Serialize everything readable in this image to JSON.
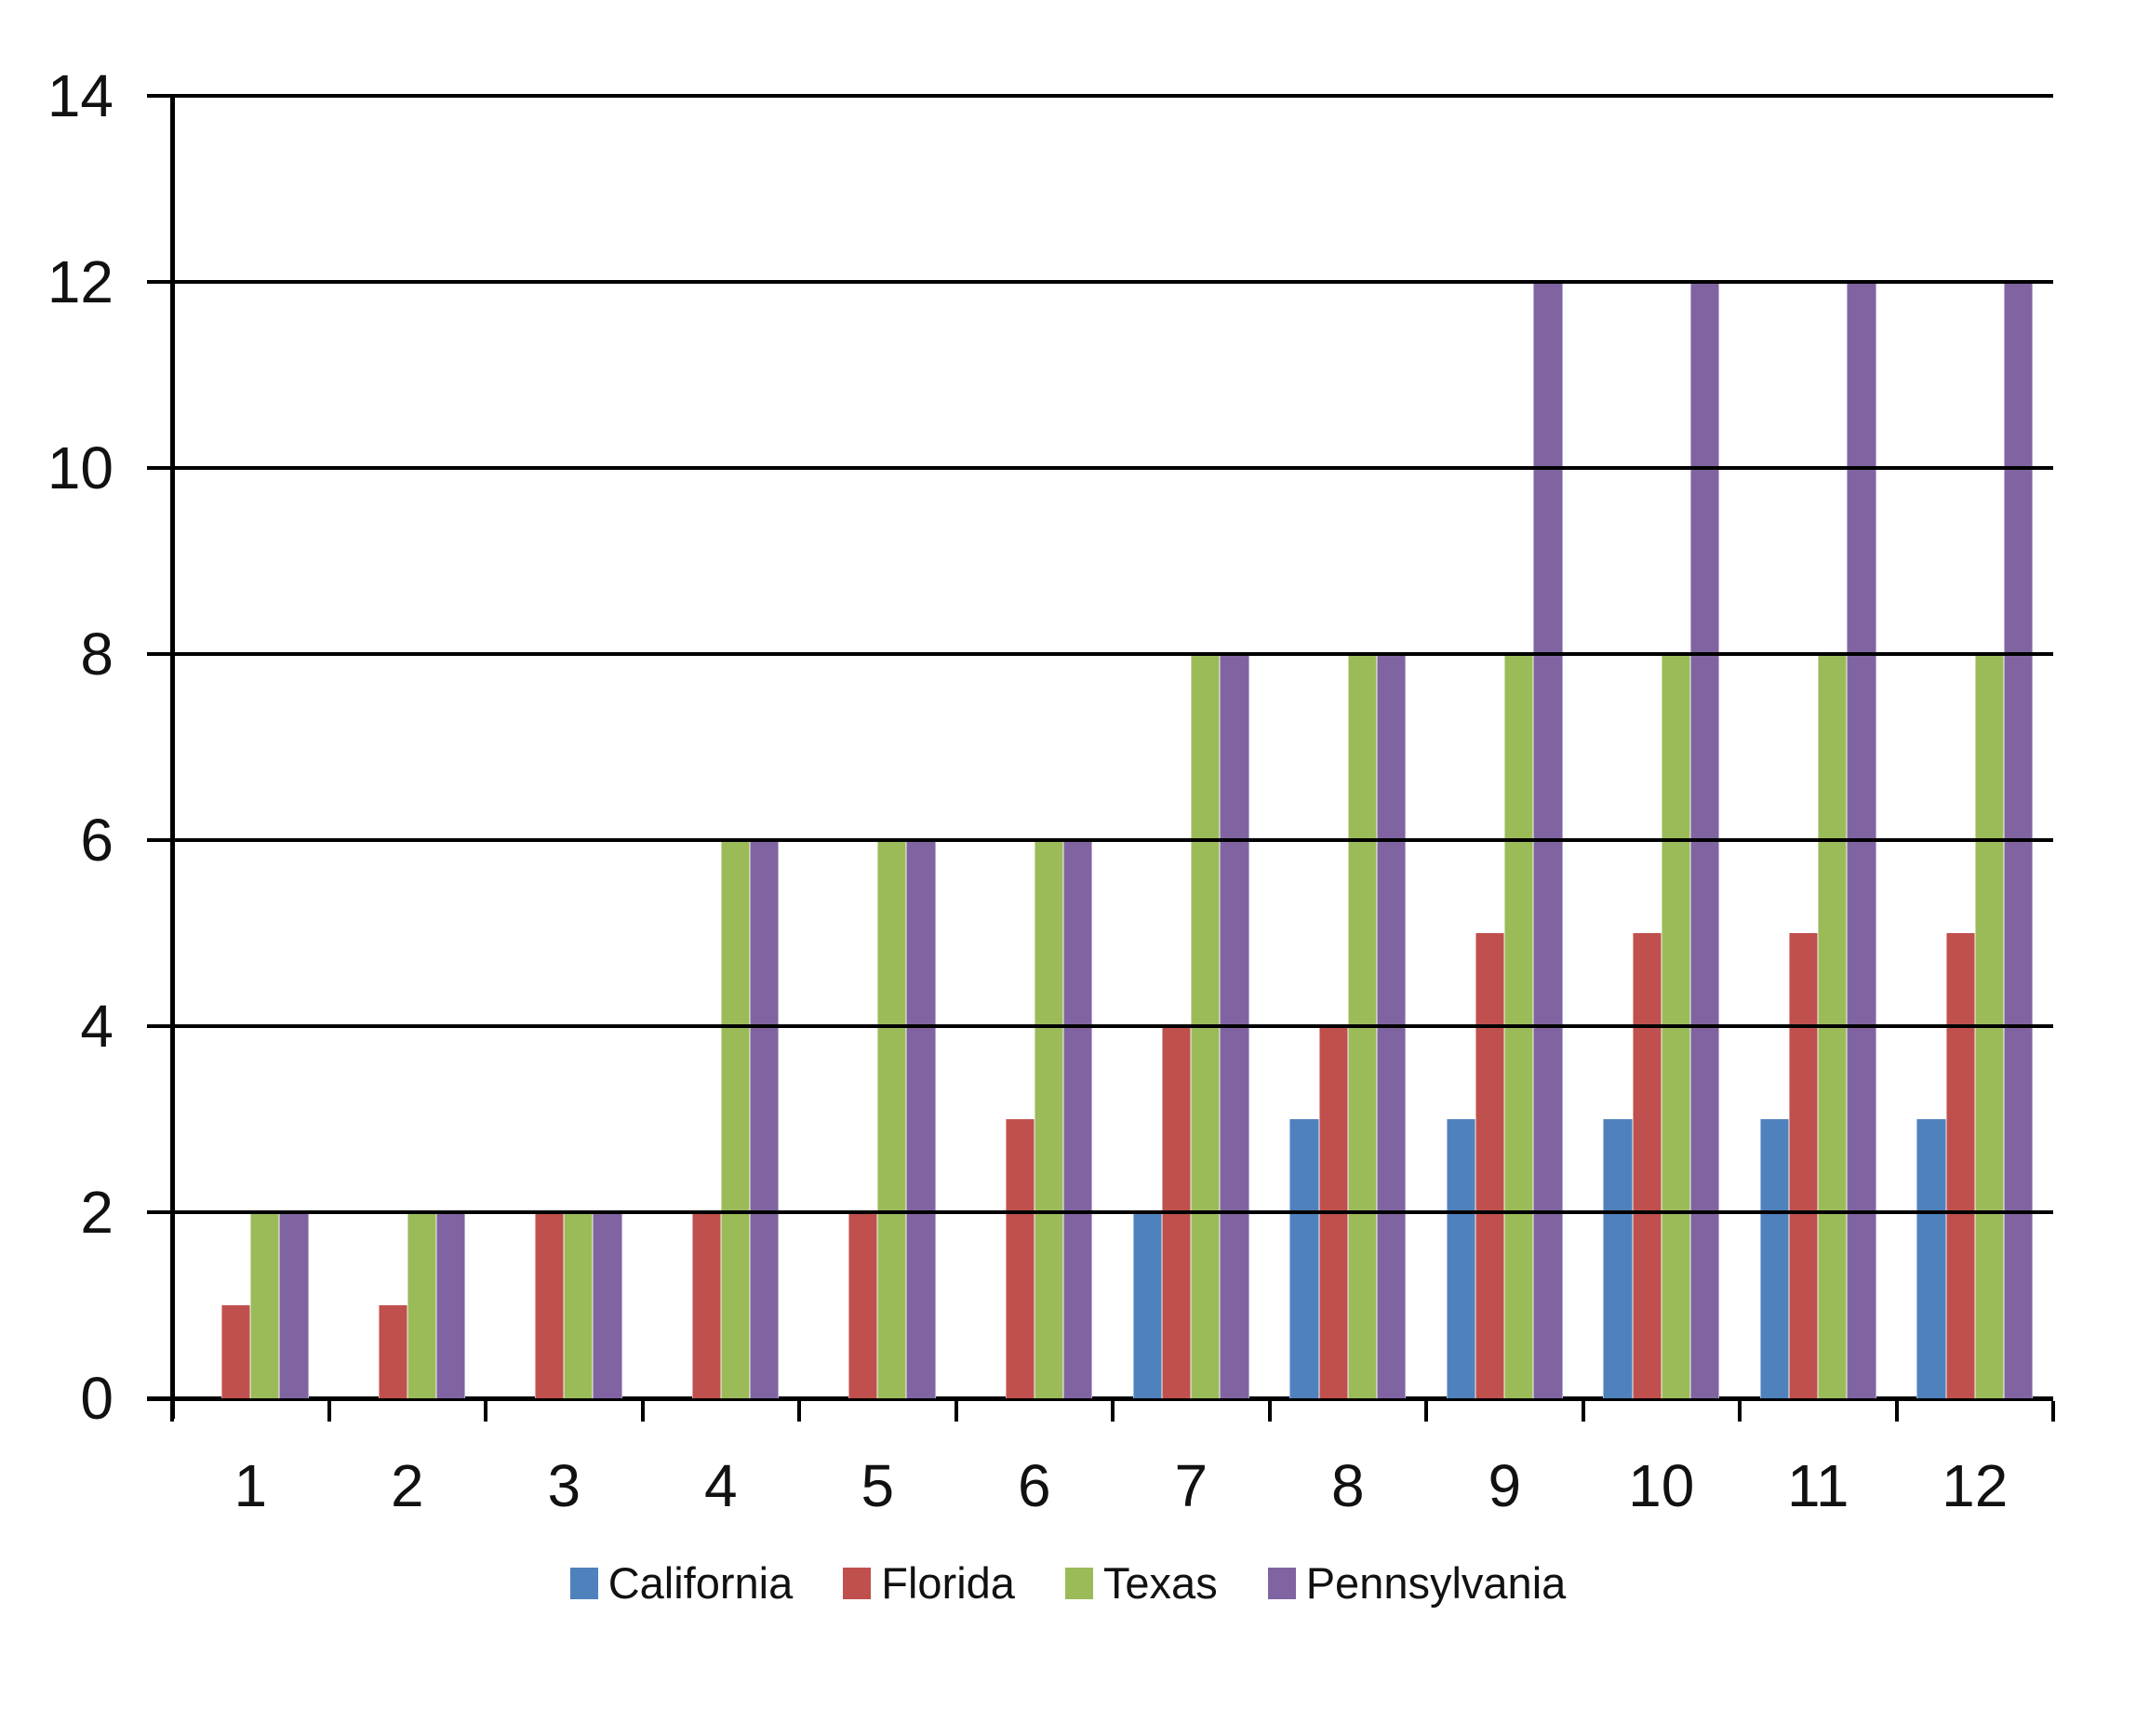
{
  "chart_data": {
    "type": "bar",
    "title": "",
    "xlabel": "",
    "ylabel": "",
    "categories": [
      "1",
      "2",
      "3",
      "4",
      "5",
      "6",
      "7",
      "8",
      "9",
      "10",
      "11",
      "12"
    ],
    "series": [
      {
        "name": "California",
        "color": "#4F81BD",
        "values": [
          0,
          0,
          0,
          0,
          0,
          0,
          2,
          3,
          3,
          3,
          3,
          3
        ]
      },
      {
        "name": "Florida",
        "color": "#C0504D",
        "values": [
          1,
          1,
          2,
          2,
          2,
          3,
          4,
          4,
          5,
          5,
          5,
          5
        ]
      },
      {
        "name": "Texas",
        "color": "#9BBB59",
        "values": [
          2,
          2,
          2,
          6,
          6,
          6,
          8,
          8,
          8,
          8,
          8,
          8
        ]
      },
      {
        "name": "Pennsylvania",
        "color": "#8064A2",
        "values": [
          2,
          2,
          2,
          6,
          6,
          6,
          8,
          8,
          12,
          12,
          12,
          12
        ]
      }
    ],
    "y_axis": {
      "min": 0,
      "max": 14,
      "step": 2,
      "tick_labels": [
        "0",
        "2",
        "4",
        "6",
        "8",
        "10",
        "12",
        "14"
      ]
    },
    "grid": true,
    "legend_position": "bottom",
    "axis_color": "#000000",
    "background_color": "#FFFFFF"
  }
}
